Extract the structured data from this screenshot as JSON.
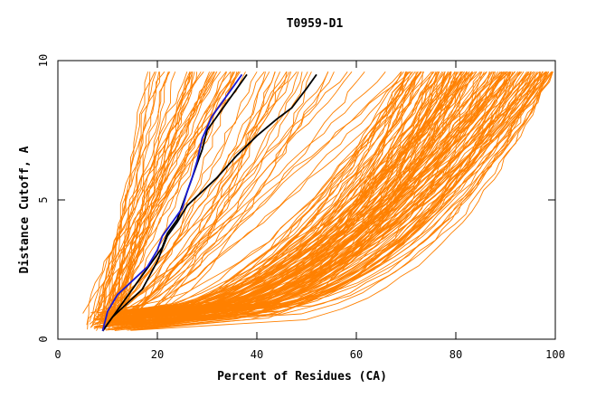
{
  "chart_data": {
    "type": "line",
    "title": "T0959-D1",
    "xlabel": "Percent of Residues (CA)",
    "ylabel": "Distance Cutoff, A",
    "xlim": [
      0,
      100
    ],
    "ylim": [
      0,
      10
    ],
    "xticks": [
      "0",
      "20",
      "40",
      "60",
      "80",
      "100"
    ],
    "yticks": [
      "0",
      "5",
      "10"
    ],
    "colors": {
      "bundle": "#ff8000",
      "black": "#000000",
      "blue": "#1a1ad6"
    },
    "series": [
      {
        "color": "#000000",
        "x": [
          9,
          11,
          14,
          17,
          20,
          22,
          24,
          26,
          29,
          32,
          36,
          40,
          44,
          47,
          50,
          52
        ],
        "y": [
          0.3,
          0.8,
          1.3,
          1.8,
          2.8,
          3.7,
          4.2,
          4.8,
          5.3,
          5.8,
          6.6,
          7.3,
          7.9,
          8.3,
          9.0,
          9.5
        ]
      },
      {
        "color": "#000000",
        "x": [
          9,
          11,
          13,
          15,
          17,
          19,
          21,
          22,
          24,
          25,
          26,
          27,
          28,
          29,
          30,
          32,
          34,
          36,
          38
        ],
        "y": [
          0.3,
          0.8,
          1.3,
          1.8,
          2.3,
          2.8,
          3.3,
          3.8,
          4.3,
          4.8,
          5.3,
          5.8,
          6.3,
          6.8,
          7.5,
          8.0,
          8.5,
          9.0,
          9.5
        ]
      },
      {
        "color": "#1a1ad6",
        "x": [
          9,
          10,
          12,
          15,
          18,
          20,
          21,
          23,
          25,
          26,
          27,
          28,
          29,
          31,
          33,
          35,
          37
        ],
        "y": [
          0.3,
          1.0,
          1.6,
          2.1,
          2.6,
          3.2,
          3.7,
          4.2,
          4.7,
          5.3,
          5.8,
          6.4,
          7.2,
          8.0,
          8.5,
          9.0,
          9.5
        ]
      }
    ]
  }
}
